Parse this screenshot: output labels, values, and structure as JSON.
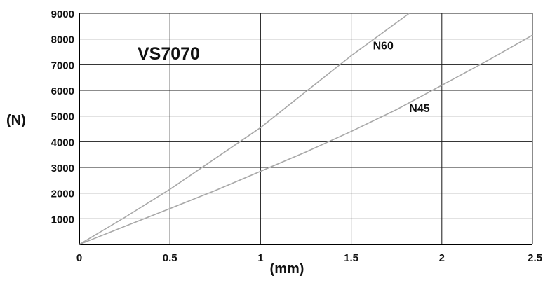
{
  "chart_data": {
    "type": "line",
    "title": "VS7070",
    "xlabel": "(mm)",
    "ylabel": "(N)",
    "xlim": [
      0,
      2.5
    ],
    "ylim": [
      0,
      9000
    ],
    "x_ticks": [
      0,
      0.5,
      1,
      1.5,
      2,
      2.5
    ],
    "x_tick_labels": [
      "0",
      "0.5",
      "1",
      "1.5",
      "2",
      "2.5"
    ],
    "y_ticks": [
      1000,
      2000,
      3000,
      4000,
      5000,
      6000,
      7000,
      8000,
      9000
    ],
    "y_tick_labels": [
      "1000",
      "2000",
      "3000",
      "4000",
      "5000",
      "6000",
      "7000",
      "8000",
      "9000"
    ],
    "grid": true,
    "legend": "none",
    "series": [
      {
        "name": "N60",
        "color": "#a8a8a8",
        "label_at": [
          1.62,
          7600
        ],
        "points": [
          [
            0,
            0
          ],
          [
            0.25,
            1050
          ],
          [
            0.5,
            2150
          ],
          [
            0.75,
            3350
          ],
          [
            1,
            4550
          ],
          [
            1.25,
            5950
          ],
          [
            1.5,
            7350
          ],
          [
            1.82,
            9000
          ]
        ]
      },
      {
        "name": "N45",
        "color": "#a8a8a8",
        "label_at": [
          1.82,
          5150
        ],
        "points": [
          [
            0,
            0
          ],
          [
            0.25,
            700
          ],
          [
            0.5,
            1400
          ],
          [
            0.75,
            2100
          ],
          [
            1,
            2850
          ],
          [
            1.25,
            3600
          ],
          [
            1.5,
            4400
          ],
          [
            1.75,
            5250
          ],
          [
            2,
            6200
          ],
          [
            2.25,
            7150
          ],
          [
            2.5,
            8150
          ]
        ]
      }
    ]
  }
}
